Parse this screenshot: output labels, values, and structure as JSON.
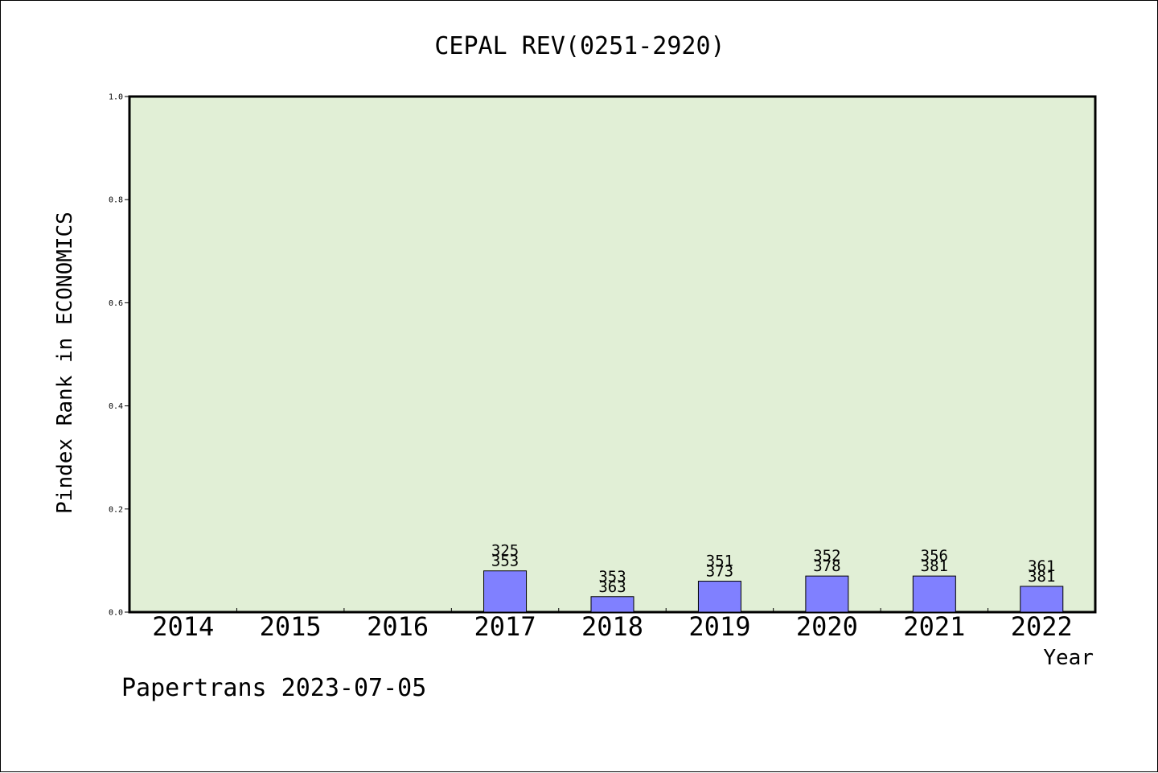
{
  "chart_data": {
    "type": "bar",
    "title": "CEPAL REV(0251-2920)",
    "xlabel": "Year",
    "ylabel": "Pindex Rank in ECONOMICS",
    "categories": [
      "2014",
      "2015",
      "2016",
      "2017",
      "2018",
      "2019",
      "2020",
      "2021",
      "2022"
    ],
    "values": [
      null,
      null,
      null,
      0.08,
      0.03,
      0.06,
      0.07,
      0.07,
      0.05
    ],
    "rank_labels": [
      null,
      null,
      null,
      [
        "325",
        "353"
      ],
      [
        "353",
        "363"
      ],
      [
        "351",
        "373"
      ],
      [
        "352",
        "378"
      ],
      [
        "356",
        "381"
      ],
      [
        "361",
        "381"
      ]
    ],
    "ylim": [
      0,
      1.0
    ],
    "yticks": [
      "0.0",
      "0.2",
      "0.4",
      "0.6",
      "0.8",
      "1.0"
    ],
    "grid": false,
    "colors": {
      "plot_bg": "#e1efd6",
      "bar_fill": "#8080ff",
      "bar_stroke": "#000000",
      "axis": "#000000"
    }
  },
  "footer": "Papertrans 2023-07-05"
}
